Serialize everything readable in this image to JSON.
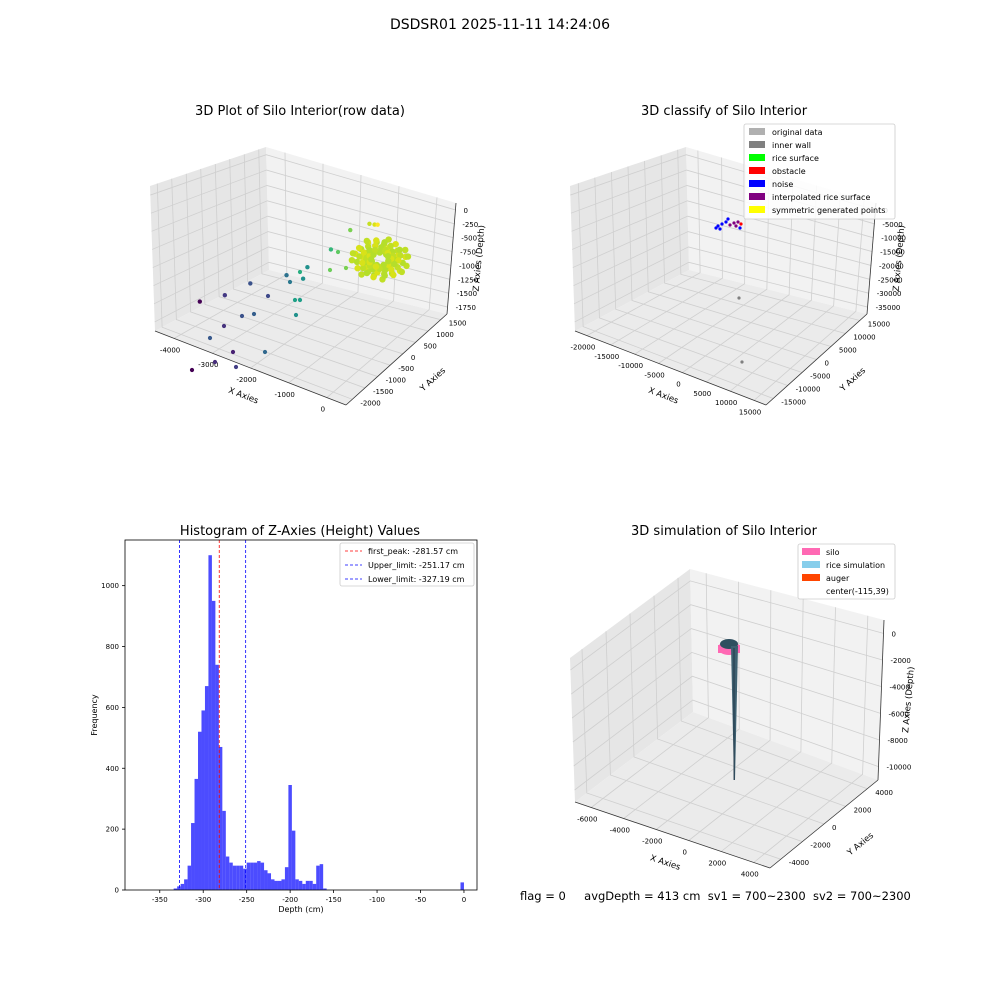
{
  "figure": {
    "suptitle": "DSDSR01 2025-11-11 14:24:06",
    "footer": {
      "flag": "flag = 0",
      "avg": "avgDepth = 413 cm",
      "sv1": "sv1 = 700~2300",
      "sv2": "sv2 = 700~2300"
    }
  },
  "chart_data": [
    {
      "type": "scatter",
      "subtype": "3d",
      "title": "3D Plot of Silo Interior(row data)",
      "xlabel": "X Axies",
      "ylabel": "Y Axies",
      "zlabel": "Z Axies (Depth)",
      "x_ticks": [
        "-4000",
        "-3000",
        "-2000",
        "-1000",
        "0"
      ],
      "y_ticks": [
        "-2000",
        "-1500",
        "-1000",
        "-500",
        "0",
        "500",
        "1000",
        "1500"
      ],
      "z_ticks": [
        "0",
        "-250",
        "-500",
        "-750",
        "-1000",
        "-1250",
        "-1500",
        "-1750"
      ],
      "colormap": "viridis",
      "points_approx": [
        {
          "x": -1100,
          "y": 900,
          "z": -350,
          "color": "#d8e219"
        },
        {
          "x": -1250,
          "y": 950,
          "z": -400,
          "color": "#c5e021"
        },
        {
          "x": -1000,
          "y": 850,
          "z": -300,
          "color": "#fde725"
        },
        {
          "x": -1600,
          "y": 800,
          "z": -550,
          "color": "#7ad151"
        },
        {
          "x": -1900,
          "y": 600,
          "z": -900,
          "color": "#35b779"
        },
        {
          "x": -2300,
          "y": 400,
          "z": -1250,
          "color": "#21918c"
        },
        {
          "x": -2350,
          "y": 350,
          "z": -1450,
          "color": "#21918c"
        },
        {
          "x": -2600,
          "y": 100,
          "z": -1350,
          "color": "#2c728e"
        },
        {
          "x": -3200,
          "y": -300,
          "z": -1500,
          "color": "#3b528b"
        },
        {
          "x": -3600,
          "y": -600,
          "z": -1700,
          "color": "#443983"
        },
        {
          "x": -4000,
          "y": -900,
          "z": -1800,
          "color": "#440154"
        }
      ],
      "grid": true
    },
    {
      "type": "scatter",
      "subtype": "3d",
      "title": "3D classify of Silo Interior",
      "xlabel": "X Axies",
      "ylabel": "Y Axies",
      "zlabel": "Z Axies (Depth)",
      "x_ticks": [
        "-20000",
        "-15000",
        "-10000",
        "-5000",
        "0",
        "5000",
        "10000",
        "15000"
      ],
      "y_ticks": [
        "-15000",
        "-10000",
        "-5000",
        "0",
        "5000",
        "10000",
        "15000"
      ],
      "z_ticks": [
        "0",
        "-5000",
        "-10000",
        "-15000",
        "-20000",
        "-25000",
        "-30000",
        "-35000"
      ],
      "legend": [
        {
          "label": "original data",
          "color": "#b0b0b0"
        },
        {
          "label": "inner wall",
          "color": "#808080"
        },
        {
          "label": "rice surface",
          "color": "#00ff00"
        },
        {
          "label": "obstacle",
          "color": "#ff0000"
        },
        {
          "label": "noise",
          "color": "#0000ff"
        },
        {
          "label": "interpolated rice surface",
          "color": "#800080"
        },
        {
          "label": "symmetric generated points",
          "color": "#ffff00"
        }
      ],
      "legend_loc": "upper right",
      "grid": true
    },
    {
      "type": "bar",
      "subtype": "histogram",
      "title": "Histogram of Z-Axies (Height) Values",
      "xlabel": "Depth (cm)",
      "ylabel": "Frequency",
      "xlim": [
        -390,
        15
      ],
      "ylim": [
        0,
        1150
      ],
      "x_ticks": [
        -350,
        -300,
        -250,
        -200,
        -150,
        -100,
        -50,
        0
      ],
      "y_ticks": [
        0,
        200,
        400,
        600,
        800,
        1000
      ],
      "bin_width": 4,
      "bin_start": -334,
      "values": [
        5,
        12,
        20,
        35,
        80,
        220,
        365,
        520,
        590,
        670,
        1100,
        950,
        740,
        470,
        260,
        110,
        90,
        80,
        80,
        80,
        70,
        90,
        90,
        90,
        95,
        90,
        65,
        55,
        35,
        30,
        30,
        35,
        75,
        345,
        195,
        35,
        30,
        20,
        30,
        30,
        20,
        80,
        85,
        5,
        0,
        0,
        0,
        0,
        0,
        0
      ],
      "color": "#0000ff",
      "vlines": [
        {
          "label": "first_peak: -281.57 cm",
          "value": -281.57,
          "color": "#ff0000"
        },
        {
          "label": "Upper_limit: -251.17 cm",
          "value": -251.17,
          "color": "#0000ff"
        },
        {
          "label": "Lower_limit: -327.19 cm",
          "value": -327.19,
          "color": "#0000ff"
        }
      ],
      "legend_loc": "upper right"
    },
    {
      "type": "scatter",
      "subtype": "3d surface",
      "title": "3D simulation of Silo Interior",
      "xlabel": "X Axies",
      "ylabel": "Y Axies",
      "zlabel": "Z Axies (Depth)",
      "x_ticks": [
        "-6000",
        "-4000",
        "-2000",
        "0",
        "2000",
        "4000"
      ],
      "y_ticks": [
        "-4000",
        "-2000",
        "0",
        "2000",
        "4000"
      ],
      "z_ticks": [
        "0",
        "-2000",
        "-4000",
        "-6000",
        "-8000",
        "-10000"
      ],
      "legend": [
        {
          "label": "silo",
          "color": "#ff69b4"
        },
        {
          "label": "rice simulation",
          "color": "#87ceeb"
        },
        {
          "label": "auger",
          "color": "#ff4500"
        },
        {
          "label": "center(-115,39)",
          "color": ""
        }
      ],
      "legend_loc": "upper right",
      "grid": true
    }
  ]
}
